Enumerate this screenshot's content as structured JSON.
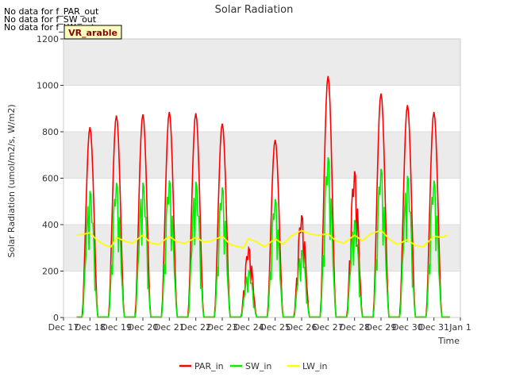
{
  "no_data_messages": [
    "No data for f_PAR_out",
    "No data for f_SW_out",
    "No data for f_LW_out"
  ],
  "badge_label": "VR_arable",
  "colors": {
    "par": "#ff0000",
    "sw": "#00ee00",
    "lw": "#ffff00",
    "band": "#ebebeb",
    "badge_bg": "#ffffc0",
    "badge_text": "#8b0000"
  },
  "chart_data": {
    "type": "line",
    "title": "Solar Radiation",
    "xlabel": "Time",
    "ylabel": "Solar Radiation (umol/m2/s, W/m2)",
    "ylim": [
      0,
      1200
    ],
    "yticks": [
      0,
      200,
      400,
      600,
      800,
      1000,
      1200
    ],
    "xlim": [
      17,
      32
    ],
    "xtick_labels": [
      "Dec 17",
      "Dec 18",
      "Dec 19",
      "Dec 20",
      "Dec 21",
      "Dec 22",
      "Dec 23",
      "Dec 24",
      "Dec 25",
      "Dec 26",
      "Dec 27",
      "Dec 28",
      "Dec 29",
      "Dec 30",
      "Dec 31",
      "Jan 1"
    ],
    "legend": [
      "PAR_in",
      "SW_in",
      "LW_in"
    ],
    "legend_position": "bottom-center",
    "series": [
      {
        "name": "PAR_in",
        "daily_peaks": [
          820,
          870,
          875,
          885,
          880,
          835,
          300,
          765,
          440,
          1040,
          630,
          965,
          915,
          885
        ]
      },
      {
        "name": "SW_in",
        "daily_peaks": [
          545,
          580,
          580,
          590,
          585,
          560,
          200,
          510,
          290,
          690,
          420,
          640,
          610,
          590
        ]
      },
      {
        "name": "LW_in",
        "x": [
          17.5,
          17.8,
          18.0,
          18.3,
          18.6,
          18.8,
          19.0,
          19.3,
          19.6,
          20.0,
          20.3,
          20.6,
          21.0,
          21.3,
          21.6,
          22.0,
          22.3,
          22.6,
          23.0,
          23.3,
          23.6,
          23.8,
          24.0,
          24.3,
          24.6,
          25.0,
          25.3,
          25.6,
          26.0,
          26.3,
          26.6,
          27.0,
          27.3,
          27.6,
          28.0,
          28.3,
          28.6,
          29.0,
          29.3,
          29.6,
          30.0,
          30.3,
          30.6,
          31.0,
          31.3,
          31.5
        ],
        "y": [
          355,
          360,
          365,
          330,
          310,
          305,
          345,
          330,
          320,
          355,
          320,
          315,
          350,
          325,
          320,
          345,
          325,
          330,
          350,
          315,
          305,
          300,
          340,
          325,
          305,
          340,
          315,
          350,
          375,
          360,
          355,
          360,
          330,
          320,
          355,
          330,
          360,
          375,
          340,
          315,
          335,
          310,
          305,
          350,
          345,
          355
        ]
      }
    ]
  }
}
